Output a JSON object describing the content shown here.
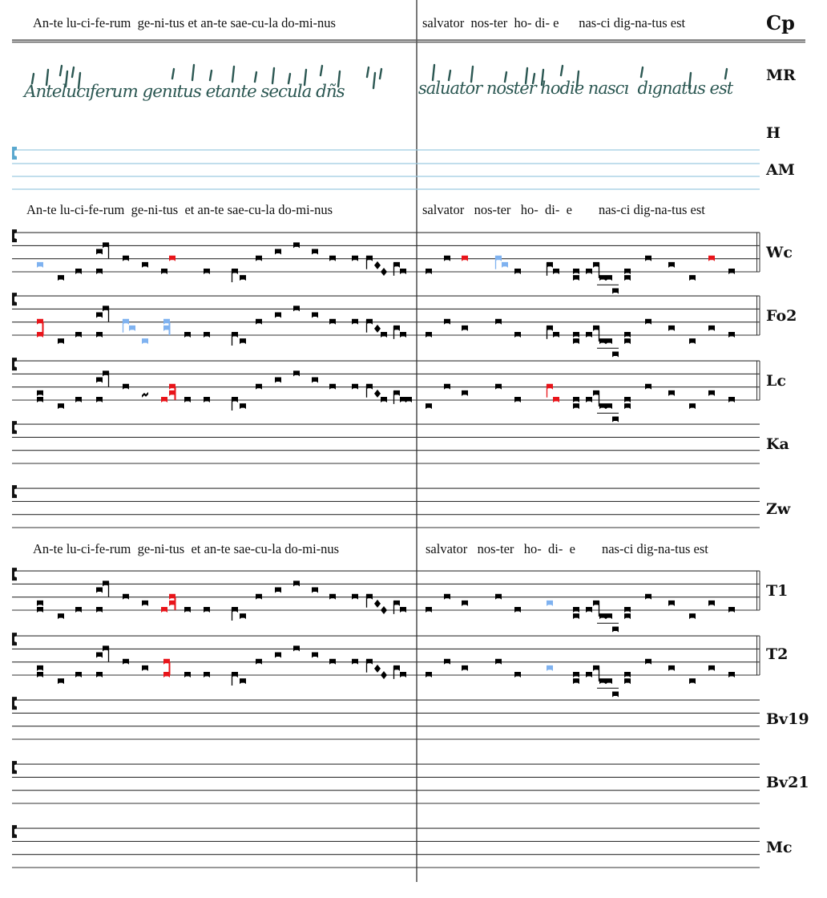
{
  "colors": {
    "normal": "#000000",
    "variant_red": "#e8141a",
    "variant_blue": "#7fb2f0",
    "am_staff": "#9ccbe0",
    "manuscript_ink": "#2b5752"
  },
  "lyrics": {
    "left": "An-te lu-ci-fe-rum  ge-ni-tus et an-te sae-cu-la do-mi-nus",
    "left_spaced": "An-te lu-ci-fe-rum  ge-ni-tus  et an-te sae-cu-la do-mi-nus",
    "right": "salvator  nos-ter  ho- di- e      nas-ci dig-na-tus est",
    "right_spaced": "salvator   nos-ter   ho-  di-  e        nas-ci dig-na-tus est"
  },
  "manuscript": {
    "label": "MR",
    "left_text": "Antelucıferum genıtus etante secula dñs",
    "right_text": "saluator noster hodie nascı  dıgnatus est"
  },
  "sources": {
    "cp": "Cp",
    "h": "H",
    "am": "AM"
  },
  "staves": [
    {
      "label": "Wc",
      "notes": [
        [
          0,
          1,
          "b"
        ],
        [
          1,
          -1,
          ""
        ],
        [
          2,
          0,
          ""
        ],
        [
          3,
          0,
          ""
        ],
        [
          3,
          3,
          ""
        ],
        [
          4,
          4,
          "u"
        ],
        [
          5,
          2,
          ""
        ],
        [
          7,
          1,
          ""
        ],
        [
          8,
          0,
          ""
        ],
        [
          9,
          2,
          "r"
        ],
        [
          11,
          0,
          ""
        ],
        [
          12,
          0,
          "s"
        ],
        [
          13,
          -1,
          ""
        ],
        [
          14,
          2,
          ""
        ],
        [
          15,
          3,
          ""
        ],
        [
          16,
          4,
          ""
        ],
        [
          17,
          3,
          ""
        ],
        [
          18,
          2,
          ""
        ],
        [
          19,
          2,
          ""
        ],
        [
          20,
          2,
          "s"
        ],
        [
          21,
          1,
          "d"
        ],
        [
          22,
          0,
          "d"
        ],
        [
          23,
          1,
          "s"
        ],
        [
          24,
          0,
          ""
        ],
        [
          26,
          0,
          ""
        ],
        [
          27,
          2,
          ""
        ],
        [
          28,
          2,
          "r"
        ],
        [
          29,
          2,
          "bs"
        ],
        [
          30,
          1,
          "b"
        ],
        [
          31,
          0,
          ""
        ],
        [
          32,
          1,
          "s"
        ],
        [
          33,
          0,
          ""
        ],
        [
          34,
          0,
          ""
        ],
        [
          34,
          -1,
          ""
        ],
        [
          35,
          0,
          ""
        ],
        [
          36,
          1,
          "u"
        ],
        [
          37,
          -1,
          ""
        ],
        [
          38,
          -1,
          "L"
        ],
        [
          39,
          -3,
          ""
        ],
        [
          40,
          0,
          ""
        ],
        [
          40,
          -1,
          ""
        ],
        [
          41,
          2,
          ""
        ],
        [
          42,
          1,
          ""
        ],
        [
          43,
          -1,
          ""
        ],
        [
          44,
          2,
          "r"
        ],
        [
          45,
          0,
          ""
        ]
      ]
    },
    {
      "label": "Fo2",
      "notes": [
        [
          0,
          0,
          "r"
        ],
        [
          0,
          2,
          "rc"
        ],
        [
          1,
          -1,
          ""
        ],
        [
          2,
          0,
          ""
        ],
        [
          3,
          0,
          ""
        ],
        [
          3,
          3,
          ""
        ],
        [
          4,
          4,
          "u"
        ],
        [
          5,
          2,
          "bs"
        ],
        [
          6,
          1,
          "b"
        ],
        [
          7,
          -1,
          "b"
        ],
        [
          46,
          1,
          "b"
        ],
        [
          46,
          2,
          "bc"
        ],
        [
          10,
          0,
          ""
        ],
        [
          11,
          0,
          ""
        ],
        [
          12,
          0,
          "s"
        ],
        [
          13,
          -1,
          ""
        ],
        [
          14,
          2,
          ""
        ],
        [
          15,
          3,
          ""
        ],
        [
          16,
          4,
          ""
        ],
        [
          17,
          3,
          ""
        ],
        [
          18,
          2,
          ""
        ],
        [
          19,
          2,
          ""
        ],
        [
          20,
          2,
          "s"
        ],
        [
          21,
          1,
          "d"
        ],
        [
          22,
          0,
          ""
        ],
        [
          23,
          1,
          "s"
        ],
        [
          24,
          0,
          ""
        ],
        [
          26,
          0,
          ""
        ],
        [
          27,
          2,
          ""
        ],
        [
          28,
          1,
          ""
        ],
        [
          29,
          2,
          ""
        ],
        [
          31,
          0,
          ""
        ],
        [
          32,
          1,
          "s"
        ],
        [
          33,
          0,
          ""
        ],
        [
          34,
          0,
          ""
        ],
        [
          34,
          -1,
          ""
        ],
        [
          35,
          0,
          ""
        ],
        [
          36,
          1,
          "u"
        ],
        [
          37,
          -1,
          ""
        ],
        [
          38,
          -1,
          "L"
        ],
        [
          39,
          -3,
          ""
        ],
        [
          40,
          0,
          ""
        ],
        [
          40,
          -1,
          ""
        ],
        [
          41,
          2,
          ""
        ],
        [
          42,
          1,
          ""
        ],
        [
          43,
          -1,
          ""
        ],
        [
          44,
          1,
          ""
        ],
        [
          45,
          0,
          ""
        ]
      ]
    },
    {
      "label": "Lc",
      "notes": [
        [
          0,
          0,
          ""
        ],
        [
          0,
          1,
          ""
        ],
        [
          1,
          -1,
          ""
        ],
        [
          2,
          0,
          ""
        ],
        [
          3,
          0,
          ""
        ],
        [
          3,
          3,
          ""
        ],
        [
          4,
          4,
          "u"
        ],
        [
          5,
          2,
          ""
        ],
        [
          7,
          1,
          "q"
        ],
        [
          8,
          0,
          "r"
        ],
        [
          9,
          1,
          "r"
        ],
        [
          9,
          2,
          "rc"
        ],
        [
          10,
          0,
          ""
        ],
        [
          11,
          0,
          ""
        ],
        [
          12,
          0,
          "s"
        ],
        [
          13,
          -1,
          ""
        ],
        [
          14,
          2,
          ""
        ],
        [
          15,
          3,
          ""
        ],
        [
          16,
          4,
          ""
        ],
        [
          17,
          3,
          ""
        ],
        [
          18,
          2,
          ""
        ],
        [
          19,
          2,
          ""
        ],
        [
          20,
          2,
          "s"
        ],
        [
          21,
          1,
          "d"
        ],
        [
          22,
          0,
          ""
        ],
        [
          23,
          1,
          "s"
        ],
        [
          24,
          0,
          ""
        ],
        [
          25,
          0,
          ""
        ],
        [
          26,
          -1,
          ""
        ],
        [
          27,
          2,
          ""
        ],
        [
          28,
          1,
          ""
        ],
        [
          29,
          2,
          ""
        ],
        [
          31,
          0,
          ""
        ],
        [
          32,
          2,
          "rs"
        ],
        [
          33,
          0,
          "r"
        ],
        [
          34,
          0,
          ""
        ],
        [
          34,
          -1,
          ""
        ],
        [
          35,
          0,
          ""
        ],
        [
          36,
          1,
          "u"
        ],
        [
          37,
          -1,
          ""
        ],
        [
          38,
          -1,
          "L"
        ],
        [
          39,
          -3,
          ""
        ],
        [
          40,
          0,
          ""
        ],
        [
          40,
          -1,
          ""
        ],
        [
          41,
          2,
          ""
        ],
        [
          42,
          1,
          ""
        ],
        [
          43,
          -1,
          ""
        ],
        [
          44,
          1,
          ""
        ],
        [
          45,
          0,
          ""
        ]
      ]
    },
    {
      "label": "Ka",
      "notes": []
    },
    {
      "label": "Zw",
      "notes": []
    },
    {
      "label": "T1",
      "notes": [
        [
          0,
          0,
          ""
        ],
        [
          0,
          1,
          ""
        ],
        [
          1,
          -1,
          ""
        ],
        [
          2,
          0,
          ""
        ],
        [
          3,
          0,
          ""
        ],
        [
          3,
          3,
          ""
        ],
        [
          4,
          4,
          "u"
        ],
        [
          5,
          2,
          ""
        ],
        [
          7,
          1,
          ""
        ],
        [
          8,
          0,
          "r"
        ],
        [
          9,
          1,
          "r"
        ],
        [
          9,
          2,
          "rc"
        ],
        [
          10,
          0,
          ""
        ],
        [
          11,
          0,
          ""
        ],
        [
          12,
          0,
          "s"
        ],
        [
          13,
          -1,
          ""
        ],
        [
          14,
          2,
          ""
        ],
        [
          15,
          3,
          ""
        ],
        [
          16,
          4,
          ""
        ],
        [
          17,
          3,
          ""
        ],
        [
          18,
          2,
          ""
        ],
        [
          19,
          2,
          ""
        ],
        [
          20,
          2,
          "s"
        ],
        [
          21,
          1,
          "d"
        ],
        [
          22,
          0,
          "d"
        ],
        [
          23,
          1,
          "s"
        ],
        [
          24,
          0,
          ""
        ],
        [
          26,
          0,
          ""
        ],
        [
          27,
          2,
          ""
        ],
        [
          28,
          1,
          ""
        ],
        [
          29,
          2,
          ""
        ],
        [
          31,
          0,
          ""
        ],
        [
          32,
          1,
          "b"
        ],
        [
          34,
          0,
          ""
        ],
        [
          34,
          -1,
          ""
        ],
        [
          35,
          0,
          ""
        ],
        [
          36,
          1,
          "u"
        ],
        [
          37,
          -1,
          ""
        ],
        [
          38,
          -1,
          "L"
        ],
        [
          39,
          -3,
          ""
        ],
        [
          40,
          0,
          ""
        ],
        [
          40,
          -1,
          ""
        ],
        [
          41,
          2,
          ""
        ],
        [
          42,
          1,
          ""
        ],
        [
          43,
          -1,
          ""
        ],
        [
          44,
          1,
          ""
        ],
        [
          45,
          0,
          ""
        ]
      ]
    },
    {
      "label": "T2",
      "notes": [
        [
          0,
          0,
          ""
        ],
        [
          0,
          1,
          ""
        ],
        [
          1,
          -1,
          ""
        ],
        [
          2,
          0,
          ""
        ],
        [
          3,
          0,
          ""
        ],
        [
          3,
          3,
          ""
        ],
        [
          4,
          4,
          "u"
        ],
        [
          5,
          2,
          ""
        ],
        [
          7,
          1,
          ""
        ],
        [
          46,
          0,
          "r"
        ],
        [
          46,
          2,
          "rc"
        ],
        [
          10,
          0,
          ""
        ],
        [
          11,
          0,
          ""
        ],
        [
          12,
          0,
          "s"
        ],
        [
          13,
          -1,
          ""
        ],
        [
          14,
          2,
          ""
        ],
        [
          15,
          3,
          ""
        ],
        [
          16,
          4,
          ""
        ],
        [
          17,
          3,
          ""
        ],
        [
          18,
          2,
          ""
        ],
        [
          19,
          2,
          ""
        ],
        [
          20,
          2,
          "s"
        ],
        [
          21,
          1,
          "d"
        ],
        [
          22,
          0,
          "d"
        ],
        [
          23,
          1,
          "s"
        ],
        [
          24,
          0,
          ""
        ],
        [
          26,
          0,
          ""
        ],
        [
          27,
          2,
          ""
        ],
        [
          28,
          1,
          ""
        ],
        [
          29,
          2,
          ""
        ],
        [
          31,
          0,
          ""
        ],
        [
          32,
          1,
          "b"
        ],
        [
          34,
          0,
          ""
        ],
        [
          34,
          -1,
          ""
        ],
        [
          35,
          0,
          ""
        ],
        [
          36,
          1,
          "u"
        ],
        [
          37,
          -1,
          ""
        ],
        [
          38,
          -1,
          "L"
        ],
        [
          39,
          -3,
          ""
        ],
        [
          40,
          0,
          ""
        ],
        [
          40,
          -1,
          ""
        ],
        [
          41,
          2,
          ""
        ],
        [
          42,
          1,
          ""
        ],
        [
          43,
          -1,
          ""
        ],
        [
          44,
          1,
          ""
        ],
        [
          45,
          0,
          ""
        ]
      ]
    },
    {
      "label": "Bv19",
      "notes": []
    },
    {
      "label": "Bv21",
      "notes": []
    },
    {
      "label": "Mc",
      "notes": []
    }
  ]
}
